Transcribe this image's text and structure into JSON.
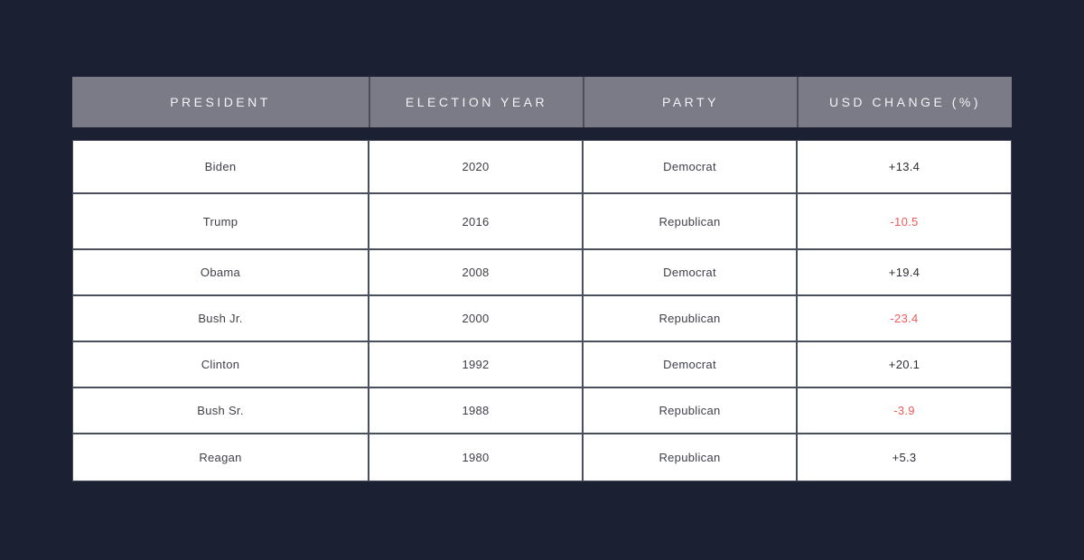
{
  "colors": {
    "page_bg": "#1b2032",
    "header_bg": "#7b7b87",
    "header_text": "#f2f2f5",
    "header_divider": "#4d4d58",
    "row_bg": "#ffffff",
    "cell_text": "#3f3f4a",
    "positive_text": "#2e2e38",
    "negative": "#f05a5a",
    "border": "#4a4f5e"
  },
  "chart_data": {
    "type": "table",
    "columns": [
      "PRESIDENT",
      "ELECTION YEAR",
      "PARTY",
      "USD CHANGE (%)"
    ],
    "rows": [
      {
        "president": "Biden",
        "year": "2020",
        "party": "Democrat",
        "usd_change": "+13.4",
        "usd_change_value": 13.4
      },
      {
        "president": "Trump",
        "year": "2016",
        "party": "Republican",
        "usd_change": "-10.5",
        "usd_change_value": -10.5
      },
      {
        "president": "Obama",
        "year": "2008",
        "party": "Democrat",
        "usd_change": "+19.4",
        "usd_change_value": 19.4
      },
      {
        "president": "Bush Jr.",
        "year": "2000",
        "party": "Republican",
        "usd_change": "-23.4",
        "usd_change_value": -23.4
      },
      {
        "president": "Clinton",
        "year": "1992",
        "party": "Democrat",
        "usd_change": "+20.1",
        "usd_change_value": 20.1
      },
      {
        "president": "Bush Sr.",
        "year": "1988",
        "party": "Republican",
        "usd_change": "-3.9",
        "usd_change_value": -3.9
      },
      {
        "president": "Reagan",
        "year": "1980",
        "party": "Republican",
        "usd_change": "+5.3",
        "usd_change_value": 5.3
      }
    ]
  }
}
